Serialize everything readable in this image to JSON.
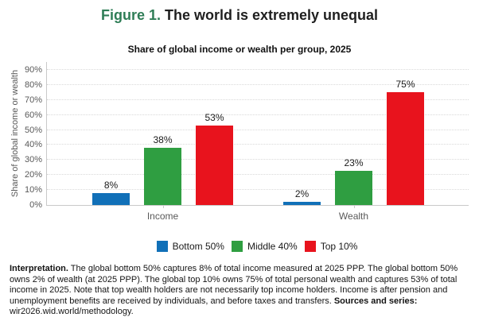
{
  "title": {
    "prefix": "Figure 1.",
    "text": " The world is extremely unequal"
  },
  "chart_data": {
    "type": "bar",
    "title": "Share of global income or wealth per group, 2025",
    "categories": [
      "Income",
      "Wealth"
    ],
    "series": [
      {
        "name": "Bottom 50%",
        "color": "#1170b8",
        "values": [
          8,
          2
        ]
      },
      {
        "name": "Middle 40%",
        "color": "#2f9e41",
        "values": [
          38,
          23
        ]
      },
      {
        "name": "Top 10%",
        "color": "#e8131d",
        "values": [
          53,
          75
        ]
      }
    ],
    "xlabel": "",
    "ylabel": "Share of global income or wealth",
    "ylim": [
      0,
      95
    ],
    "yticks": [
      0,
      10,
      20,
      30,
      40,
      50,
      60,
      70,
      80,
      90
    ],
    "ytick_suffix": "%",
    "data_label_suffix": "%",
    "grid": "horizontal-dotted",
    "legend_position": "bottom"
  },
  "footnote": {
    "segments": [
      {
        "text": "Interpretation.",
        "bold": true
      },
      {
        "text": " The global bottom 50% captures 8% of total income measured at 2025 PPP. The global bottom 50% owns 2% of wealth (at 2025 PPP). The global top 10% owns 75% of total personal wealth and captures 53% of total income in 2025. Note that top wealth holders are not necessarily top income holders. Income is after pension and unemployment benefits are received by individuals, and before taxes and transfers. ",
        "bold": false
      },
      {
        "text": "Sources and series:",
        "bold": true
      },
      {
        "text": " wir2026.wid.world/methodology.",
        "bold": false
      }
    ]
  },
  "colors": {
    "figure_accent": "#2e7d56",
    "title_text": "#1f1f1f",
    "axis_text": "#595959",
    "gridline": "#d9d9d9",
    "axis_line": "#c9c9c9",
    "body_text": "#141414"
  }
}
